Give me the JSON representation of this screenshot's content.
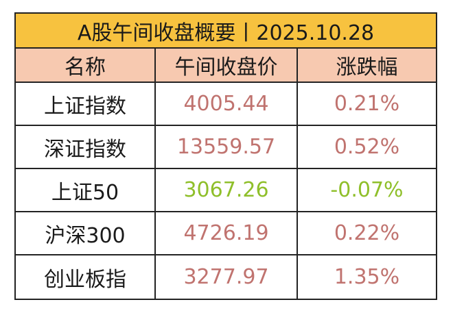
{
  "title": "A股午间收盘概要丨2025.10.28",
  "colors": {
    "title_bg": "#f7c23f",
    "header_bg": "#f7c9b0",
    "up": "#c0736f",
    "down": "#8fbf2a"
  },
  "headers": [
    "名称",
    "午间收盘价",
    "涨跌幅"
  ],
  "rows": [
    {
      "name": "上证指数",
      "price": "4005.44",
      "change": "0.21%",
      "direction": "up"
    },
    {
      "name": "深证指数",
      "price": "13559.57",
      "change": "0.52%",
      "direction": "up"
    },
    {
      "name": "上证50",
      "price": "3067.26",
      "change": "-0.07%",
      "direction": "down"
    },
    {
      "name": "沪深300",
      "price": "4726.19",
      "change": "0.22%",
      "direction": "up"
    },
    {
      "name": "创业板指",
      "price": "3277.97",
      "change": "1.35%",
      "direction": "up"
    }
  ]
}
